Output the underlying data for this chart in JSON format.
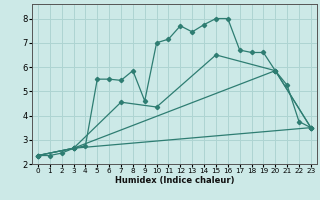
{
  "xlabel": "Humidex (Indice chaleur)",
  "background_color": "#cce9e7",
  "grid_color": "#aed4d2",
  "line_color": "#2e7d72",
  "xlim": [
    -0.5,
    23.5
  ],
  "ylim": [
    2.0,
    8.6
  ],
  "yticks": [
    2,
    3,
    4,
    5,
    6,
    7,
    8
  ],
  "xticks": [
    0,
    1,
    2,
    3,
    4,
    5,
    6,
    7,
    8,
    9,
    10,
    11,
    12,
    13,
    14,
    15,
    16,
    17,
    18,
    19,
    20,
    21,
    22,
    23
  ],
  "series": [
    {
      "x": [
        0,
        1,
        2,
        3,
        4,
        5,
        6,
        7,
        8,
        9,
        10,
        11,
        12,
        13,
        14,
        15,
        16,
        17,
        18,
        19,
        20,
        21,
        22,
        23
      ],
      "y": [
        2.35,
        2.35,
        2.45,
        2.65,
        2.75,
        5.5,
        5.5,
        5.45,
        5.85,
        4.6,
        7.0,
        7.15,
        7.7,
        7.45,
        7.75,
        8.0,
        8.0,
        6.7,
        6.6,
        6.6,
        5.85,
        5.25,
        3.75,
        3.5
      ]
    },
    {
      "x": [
        0,
        3,
        7,
        10,
        15,
        20,
        23
      ],
      "y": [
        2.35,
        2.65,
        4.55,
        4.35,
        6.5,
        5.85,
        3.5
      ]
    },
    {
      "x": [
        0,
        3,
        20,
        23
      ],
      "y": [
        2.35,
        2.65,
        5.85,
        3.5
      ]
    },
    {
      "x": [
        0,
        3,
        23
      ],
      "y": [
        2.35,
        2.65,
        3.5
      ]
    }
  ]
}
